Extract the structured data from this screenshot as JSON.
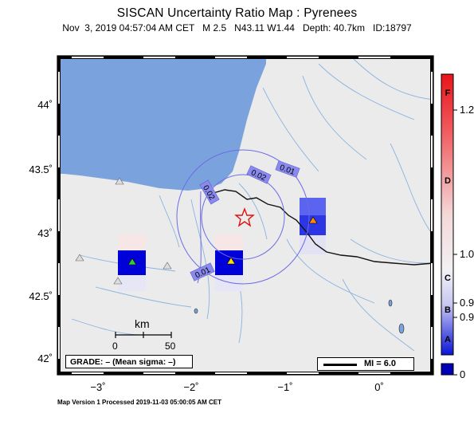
{
  "header": {
    "title": "SISCAN Uncertainty Ratio Map : Pyrenees",
    "subtitle": "Nov  3, 2019 04:57:04 AM CET   M 2.5   N43.11 W1.44   Depth: 40.7km   ID:18797"
  },
  "footer": "Map Version 1 Processed 2019-11-03 05:00:05 AM CET",
  "axes": {
    "lat_labels": [
      "44˚",
      "43.5˚",
      "43˚",
      "42.5˚",
      "42˚"
    ],
    "lon_labels": [
      "−3˚",
      "−2˚",
      "−1˚",
      "0˚"
    ]
  },
  "colorbar": {
    "letters": [
      "F",
      "D",
      "C",
      "B",
      "A"
    ],
    "values": [
      "1.2",
      "1.0",
      "0.9",
      "0.9",
      "0"
    ],
    "colors": {
      "top": "#e8141a",
      "mid": "#f4f0f2",
      "bottom": "#0a14d8",
      "nodata": "#0000b4"
    }
  },
  "scale_bar": {
    "title": "km",
    "ticks": [
      "0",
      "50"
    ]
  },
  "grade": "GRADE: – (Mean sigma: –)",
  "mi_legend": "MI = 6.0",
  "contours": [
    {
      "label": "0.01"
    },
    {
      "label": "0.02"
    },
    {
      "label": "0.02"
    },
    {
      "label": "0.01"
    }
  ],
  "epicenter": {
    "lat": 43.11,
    "lon": -1.44
  },
  "stations": [
    {
      "name": "station-green",
      "color": "#33cc33"
    },
    {
      "name": "station-yellow",
      "color": "#ffdd00"
    },
    {
      "name": "station-orange",
      "color": "#ff8c00"
    },
    {
      "name": "station-gray-1",
      "color": "#dddddd"
    },
    {
      "name": "station-gray-2",
      "color": "#dddddd"
    },
    {
      "name": "station-gray-3",
      "color": "#dddddd"
    },
    {
      "name": "station-gray-4",
      "color": "#dddddd"
    }
  ],
  "colors": {
    "sea": "#7aa3dd",
    "land": "#ebebeb",
    "river": "#8bb3e0",
    "border": "#000000"
  }
}
